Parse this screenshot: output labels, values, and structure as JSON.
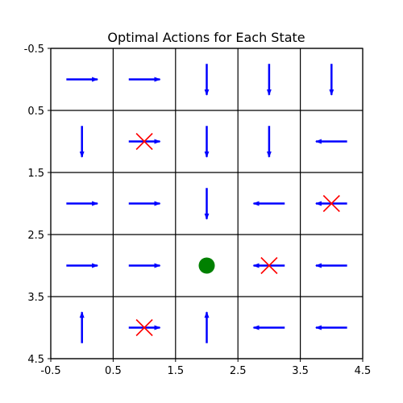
{
  "chart_data": {
    "type": "grid",
    "title": "Optimal Actions for Each State",
    "xlim": [
      -0.5,
      4.5
    ],
    "ylim": [
      -0.5,
      4.5
    ],
    "y_inverted": true,
    "x_ticks": [
      "-0.5",
      "0.5",
      "1.5",
      "2.5",
      "3.5",
      "4.5"
    ],
    "y_ticks": [
      "-0.5",
      "0.5",
      "1.5",
      "2.5",
      "3.5",
      "4.5"
    ],
    "grid": true,
    "grid_rows": 5,
    "grid_cols": 5,
    "actions": [
      [
        "right",
        "right",
        "down",
        "down",
        "down"
      ],
      [
        "down",
        "right",
        "down",
        "down",
        "left"
      ],
      [
        "right",
        "right",
        "down",
        "left",
        "left"
      ],
      [
        "right",
        "right",
        "none",
        "left",
        "left"
      ],
      [
        "up",
        "right",
        "up",
        "left",
        "left"
      ]
    ],
    "blocked_states": [
      {
        "row": 1,
        "col": 1
      },
      {
        "row": 2,
        "col": 4
      },
      {
        "row": 3,
        "col": 3
      },
      {
        "row": 4,
        "col": 1
      }
    ],
    "goal_state": {
      "row": 3,
      "col": 2
    },
    "colors": {
      "arrow": "#0000ff",
      "cross": "#ff0000",
      "goal": "#008000",
      "grid": "#000000"
    },
    "markers": {
      "blocked": "x-mark",
      "goal": "circle"
    }
  }
}
